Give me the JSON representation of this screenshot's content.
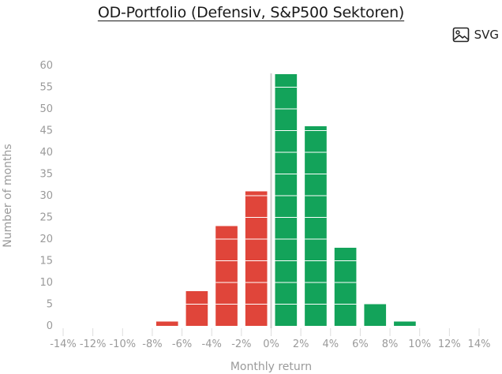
{
  "header": {
    "title": "OD-Portfolio (Defensiv, S&P500 Sektoren)",
    "export_label": "SVG",
    "export_icon": "image-icon"
  },
  "chart_data": {
    "type": "bar",
    "title": "OD-Portfolio (Defensiv, S&P500 Sektoren)",
    "xlabel": "Monthly return",
    "ylabel": "Number of months",
    "x_ticks": [
      "-14%",
      "-12%",
      "-10%",
      "-8%",
      "-6%",
      "-4%",
      "-2%",
      "0%",
      "2%",
      "4%",
      "6%",
      "8%",
      "10%",
      "12%",
      "14%"
    ],
    "x_tick_values": [
      -14,
      -12,
      -10,
      -8,
      -6,
      -4,
      -2,
      0,
      2,
      4,
      6,
      8,
      10,
      12,
      14
    ],
    "y_ticks": [
      "0",
      "5",
      "10",
      "15",
      "20",
      "25",
      "30",
      "35",
      "40",
      "45",
      "50",
      "55",
      "60"
    ],
    "xlim": [
      -14,
      14
    ],
    "ylim": [
      0,
      60
    ],
    "bin_width": 2,
    "bins": [
      {
        "center": -7,
        "value": 1
      },
      {
        "center": -5,
        "value": 8
      },
      {
        "center": -3,
        "value": 23
      },
      {
        "center": -1,
        "value": 31
      },
      {
        "center": 1,
        "value": 58
      },
      {
        "center": 3,
        "value": 46
      },
      {
        "center": 5,
        "value": 18
      },
      {
        "center": 7,
        "value": 5
      },
      {
        "center": 9,
        "value": 1
      }
    ],
    "colors": {
      "negative": "#e0453a",
      "positive": "#13a35a",
      "zero_line": "#cccccc",
      "grid": "#dddddd",
      "tick_text": "#9a9a9a"
    }
  }
}
